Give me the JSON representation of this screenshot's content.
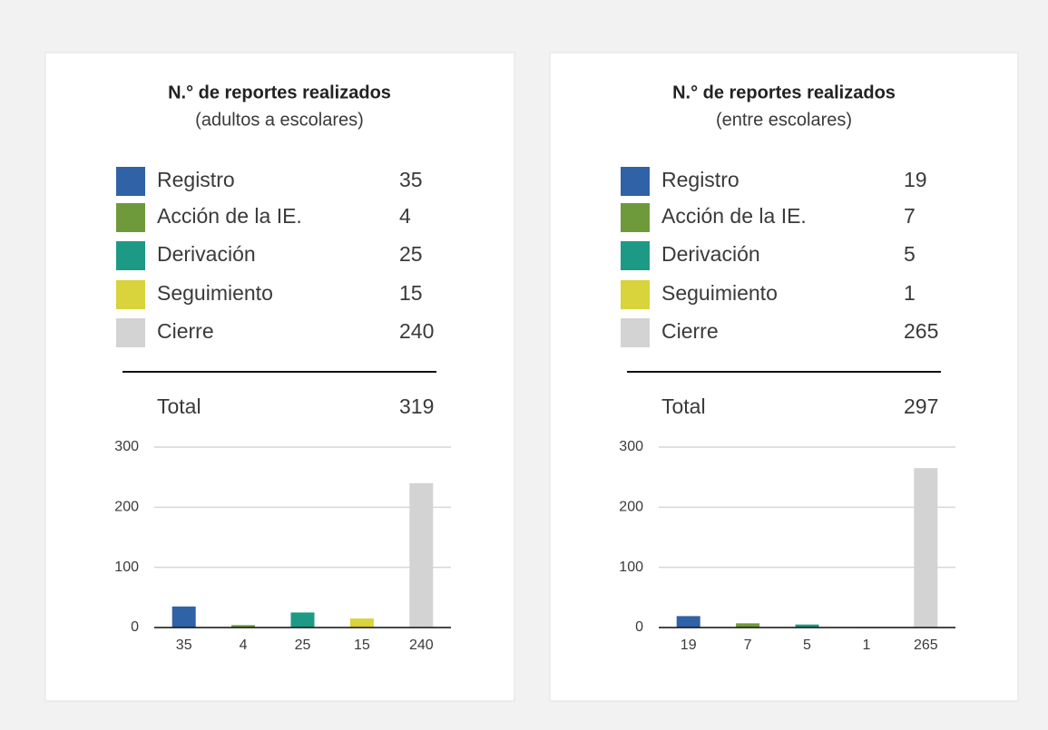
{
  "chart_data": [
    {
      "type": "bar",
      "title": "N.° de reportes realizados",
      "subtitle": "(adultos a escolares)",
      "categories": [
        "Registro",
        "Acción de la IE.",
        "Derivación",
        "Seguimiento",
        "Cierre"
      ],
      "values": [
        35,
        4,
        25,
        15,
        240
      ],
      "colors": [
        "#2f62a6",
        "#6f9a3c",
        "#1d9a86",
        "#d9d33c",
        "#d3d3d3"
      ],
      "total_label": "Total",
      "total": 319,
      "ylim": [
        0,
        300
      ],
      "yticks": [
        0,
        100,
        200,
        300
      ],
      "grid": true
    },
    {
      "type": "bar",
      "title": "N.° de reportes realizados",
      "subtitle": "(entre escolares)",
      "categories": [
        "Registro",
        "Acción de la IE.",
        "Derivación",
        "Seguimiento",
        "Cierre"
      ],
      "values": [
        19,
        7,
        5,
        1,
        265
      ],
      "colors": [
        "#2f62a6",
        "#6f9a3c",
        "#1d9a86",
        "#d9d33c",
        "#d3d3d3"
      ],
      "total_label": "Total",
      "total": 297,
      "ylim": [
        0,
        300
      ],
      "yticks": [
        0,
        100,
        200,
        300
      ],
      "grid": true
    }
  ]
}
